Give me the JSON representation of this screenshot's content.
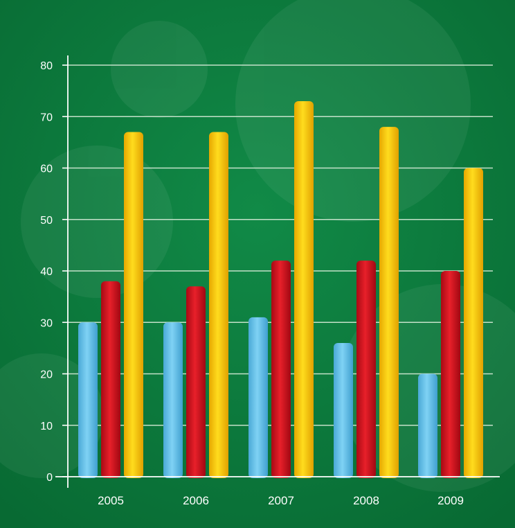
{
  "chart_data": {
    "type": "bar",
    "title": "",
    "xlabel": "",
    "ylabel": "",
    "categories": [
      "2005",
      "2006",
      "2007",
      "2008",
      "2009"
    ],
    "series": [
      {
        "values": [
          30,
          30,
          31,
          26,
          20
        ]
      },
      {
        "values": [
          38,
          37,
          42,
          42,
          40
        ]
      },
      {
        "values": [
          67,
          67,
          73,
          68,
          60
        ]
      }
    ],
    "ylim": [
      0,
      80
    ],
    "yticks": [
      "0",
      "10",
      "20",
      "30",
      "40",
      "50",
      "60",
      "70",
      "80"
    ],
    "grid": true,
    "legend": "none",
    "colors": {
      "background": "#0a7a3c",
      "grid": "#d8ecd8",
      "axis": "#ffffff",
      "series": [
        "#64c4ec",
        "#d4121e",
        "#ffcf00"
      ]
    }
  }
}
